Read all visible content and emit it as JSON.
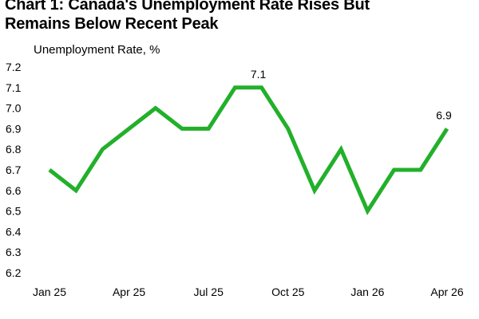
{
  "title": {
    "line1": "Chart 1: Canada's Unemployment Rate Rises But",
    "line2": "Remains Below Recent Peak"
  },
  "chart_data": {
    "type": "line",
    "title": "Chart 1: Canada's Unemployment Rate Rises But Remains Below Recent Peak",
    "ylabel": "Unemployment Rate, %",
    "xlabel": "",
    "x": [
      "Jan 25",
      "Feb 25",
      "Mar 25",
      "Apr 25",
      "May 25",
      "Jun 25",
      "Jul 25",
      "Aug 25",
      "Sep 25",
      "Oct 25",
      "Nov 25",
      "Dec 25",
      "Jan 26",
      "Feb 26",
      "Mar 26",
      "Apr 26"
    ],
    "x_tick_labels": [
      "Jan 25",
      "Apr 25",
      "Jul 25",
      "Oct 25",
      "Jan 26",
      "Apr 26"
    ],
    "y_ticks": [
      "6.2",
      "6.3",
      "6.4",
      "6.5",
      "6.6",
      "6.7",
      "6.8",
      "6.9",
      "7.0",
      "7.1",
      "7.2"
    ],
    "ylim": [
      6.2,
      7.2
    ],
    "grid": false,
    "series": [
      {
        "values": [
          6.7,
          6.6,
          6.8,
          6.9,
          7.0,
          6.9,
          6.9,
          7.1,
          7.1,
          6.9,
          6.6,
          6.8,
          6.5,
          6.7,
          6.7,
          6.9
        ],
        "color": "#22b02a"
      }
    ],
    "data_labels": [
      {
        "index": 8,
        "text": "7.1"
      },
      {
        "index": 15,
        "text": "6.9"
      }
    ]
  }
}
